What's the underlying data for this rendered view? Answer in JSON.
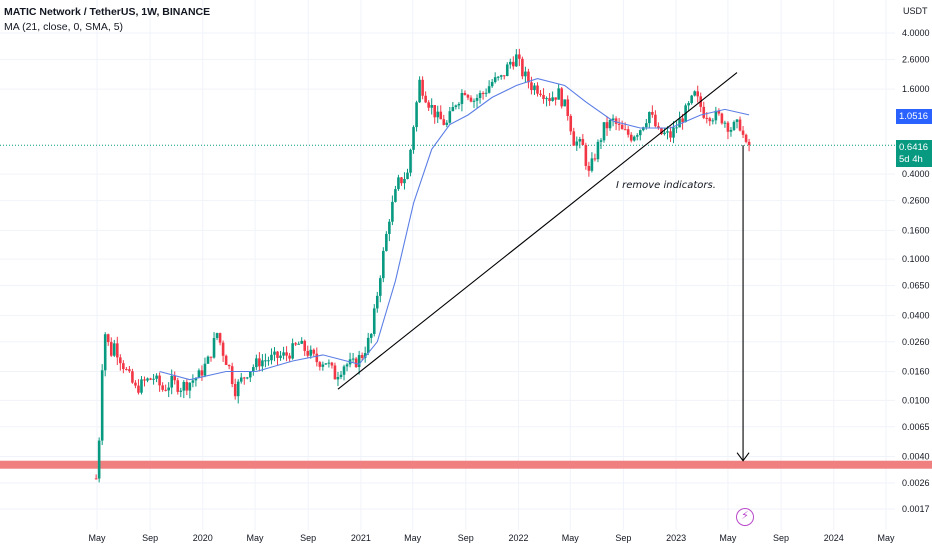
{
  "header": {
    "title": "MATIC Network / TetherUS, 1W, BINANCE",
    "ma_legend": "MA (21, close, 0, SMA, 5)"
  },
  "colors": {
    "up": "#089981",
    "down": "#f23645",
    "ma": "#5b7ee5",
    "support_band": "#f08080",
    "trendline": "#000000",
    "last_price_line": "#089981"
  },
  "icons": {
    "flash": "lightning-icon"
  },
  "annotation": "I remove indicators.",
  "labels": {
    "ma_value": "1.0516",
    "last_price": "0.6416",
    "countdown": "5d 4h"
  },
  "chart_data": {
    "type": "candlestick",
    "title": "MATIC Network / TetherUS, 1W, BINANCE",
    "yscale": "log",
    "yunit": "USDT",
    "ylim": [
      0.0015,
      5.0
    ],
    "xlim": [
      "2019-04-15",
      "2024-05-15"
    ],
    "y_ticks": [
      "4.0000",
      "2.6000",
      "1.6000",
      "1.0516",
      "0.6416",
      "0.4000",
      "0.2600",
      "0.1600",
      "0.1000",
      "0.0650",
      "0.0400",
      "0.0260",
      "0.0160",
      "0.0100",
      "0.0065",
      "0.0040",
      "0.0026",
      "0.0017"
    ],
    "x_ticks": [
      {
        "label": "May",
        "date": "2019-05-01"
      },
      {
        "label": "Sep",
        "date": "2019-09-01"
      },
      {
        "label": "2020",
        "date": "2020-01-01"
      },
      {
        "label": "May",
        "date": "2020-05-01"
      },
      {
        "label": "Sep",
        "date": "2020-09-01"
      },
      {
        "label": "2021",
        "date": "2021-01-01"
      },
      {
        "label": "May",
        "date": "2021-05-01"
      },
      {
        "label": "Sep",
        "date": "2021-09-01"
      },
      {
        "label": "2022",
        "date": "2022-01-01"
      },
      {
        "label": "May",
        "date": "2022-05-01"
      },
      {
        "label": "Sep",
        "date": "2022-09-01"
      },
      {
        "label": "2023",
        "date": "2023-01-01"
      },
      {
        "label": "May",
        "date": "2023-05-01"
      },
      {
        "label": "Sep",
        "date": "2023-09-01"
      },
      {
        "label": "2024",
        "date": "2024-01-01"
      },
      {
        "label": "May",
        "date": "2024-05-01"
      }
    ],
    "price_path": [
      [
        "2019-04-29",
        0.0028
      ],
      [
        "2019-05-06",
        0.0055
      ],
      [
        "2019-05-13",
        0.018
      ],
      [
        "2019-05-20",
        0.03
      ],
      [
        "2019-05-27",
        0.025
      ],
      [
        "2019-06-03",
        0.022
      ],
      [
        "2019-06-10",
        0.025
      ],
      [
        "2019-06-24",
        0.02
      ],
      [
        "2019-07-08",
        0.016
      ],
      [
        "2019-07-29",
        0.012
      ],
      [
        "2019-08-19",
        0.0135
      ],
      [
        "2019-09-09",
        0.0145
      ],
      [
        "2019-09-30",
        0.012
      ],
      [
        "2019-10-21",
        0.0135
      ],
      [
        "2019-11-11",
        0.0125
      ],
      [
        "2019-12-02",
        0.0135
      ],
      [
        "2019-12-23",
        0.015
      ],
      [
        "2020-01-13",
        0.019
      ],
      [
        "2020-02-03",
        0.03
      ],
      [
        "2020-02-17",
        0.022
      ],
      [
        "2020-03-02",
        0.017
      ],
      [
        "2020-03-16",
        0.012
      ],
      [
        "2020-04-13",
        0.016
      ],
      [
        "2020-05-11",
        0.019
      ],
      [
        "2020-06-15",
        0.02
      ],
      [
        "2020-07-13",
        0.021
      ],
      [
        "2020-08-10",
        0.025
      ],
      [
        "2020-08-31",
        0.022
      ],
      [
        "2020-09-21",
        0.019
      ],
      [
        "2020-10-12",
        0.019
      ],
      [
        "2020-11-02",
        0.015
      ],
      [
        "2020-11-23",
        0.018
      ],
      [
        "2020-12-14",
        0.018
      ],
      [
        "2021-01-04",
        0.021
      ],
      [
        "2021-01-25",
        0.029
      ],
      [
        "2021-02-15",
        0.08
      ],
      [
        "2021-03-08",
        0.2
      ],
      [
        "2021-03-29",
        0.35
      ],
      [
        "2021-04-19",
        0.4
      ],
      [
        "2021-05-03",
        0.9
      ],
      [
        "2021-05-17",
        1.8
      ],
      [
        "2021-06-07",
        1.3
      ],
      [
        "2021-06-28",
        1.0
      ],
      [
        "2021-07-19",
        0.9
      ],
      [
        "2021-08-09",
        1.3
      ],
      [
        "2021-08-30",
        1.6
      ],
      [
        "2021-09-20",
        1.35
      ],
      [
        "2021-10-11",
        1.5
      ],
      [
        "2021-11-01",
        1.8
      ],
      [
        "2021-11-22",
        1.9
      ],
      [
        "2021-12-13",
        2.5
      ],
      [
        "2021-12-27",
        2.7
      ],
      [
        "2022-01-10",
        2.1
      ],
      [
        "2022-01-31",
        1.7
      ],
      [
        "2022-02-21",
        1.6
      ],
      [
        "2022-03-14",
        1.4
      ],
      [
        "2022-04-04",
        1.5
      ],
      [
        "2022-04-25",
        1.1
      ],
      [
        "2022-05-09",
        0.7
      ],
      [
        "2022-05-30",
        0.62
      ],
      [
        "2022-06-13",
        0.4
      ],
      [
        "2022-06-27",
        0.55
      ],
      [
        "2022-07-18",
        0.85
      ],
      [
        "2022-08-08",
        0.95
      ],
      [
        "2022-08-29",
        0.8
      ],
      [
        "2022-09-19",
        0.75
      ],
      [
        "2022-10-10",
        0.85
      ],
      [
        "2022-10-31",
        1.1
      ],
      [
        "2022-11-21",
        0.78
      ],
      [
        "2022-12-19",
        0.75
      ],
      [
        "2023-01-09",
        0.95
      ],
      [
        "2023-01-30",
        1.2
      ],
      [
        "2023-02-13",
        1.45
      ],
      [
        "2023-03-06",
        1.1
      ],
      [
        "2023-03-27",
        1.05
      ],
      [
        "2023-04-17",
        1.0
      ],
      [
        "2023-05-08",
        0.85
      ],
      [
        "2023-05-29",
        0.9
      ],
      [
        "2023-06-12",
        0.62
      ],
      [
        "2023-06-19",
        0.6416
      ]
    ],
    "moving_average": {
      "name": "MA (21, close, 0, SMA, 5)",
      "points": [
        [
          "2019-09-23",
          0.016
        ],
        [
          "2019-12-02",
          0.014
        ],
        [
          "2020-02-24",
          0.016
        ],
        [
          "2020-05-04",
          0.016
        ],
        [
          "2020-07-27",
          0.019
        ],
        [
          "2020-10-05",
          0.021
        ],
        [
          "2020-12-28",
          0.018
        ],
        [
          "2021-02-08",
          0.026
        ],
        [
          "2021-03-22",
          0.07
        ],
        [
          "2021-05-03",
          0.25
        ],
        [
          "2021-06-14",
          0.6
        ],
        [
          "2021-07-26",
          0.9
        ],
        [
          "2021-09-06",
          1.05
        ],
        [
          "2021-11-01",
          1.4
        ],
        [
          "2021-12-27",
          1.7
        ],
        [
          "2022-02-14",
          1.9
        ],
        [
          "2022-04-18",
          1.7
        ],
        [
          "2022-06-06",
          1.3
        ],
        [
          "2022-08-08",
          0.95
        ],
        [
          "2022-10-10",
          0.85
        ],
        [
          "2022-12-19",
          0.85
        ],
        [
          "2023-02-27",
          1.05
        ],
        [
          "2023-04-24",
          1.15
        ],
        [
          "2023-06-19",
          1.0516
        ]
      ]
    },
    "trendline": {
      "from": [
        "2020-11-09",
        0.012
      ],
      "to": [
        "2023-05-22",
        2.1
      ]
    },
    "support_level": 0.0035,
    "last_price": 0.6416,
    "projection_arrow": {
      "date": "2023-06-05",
      "from": 0.6416,
      "to": 0.0035
    }
  }
}
